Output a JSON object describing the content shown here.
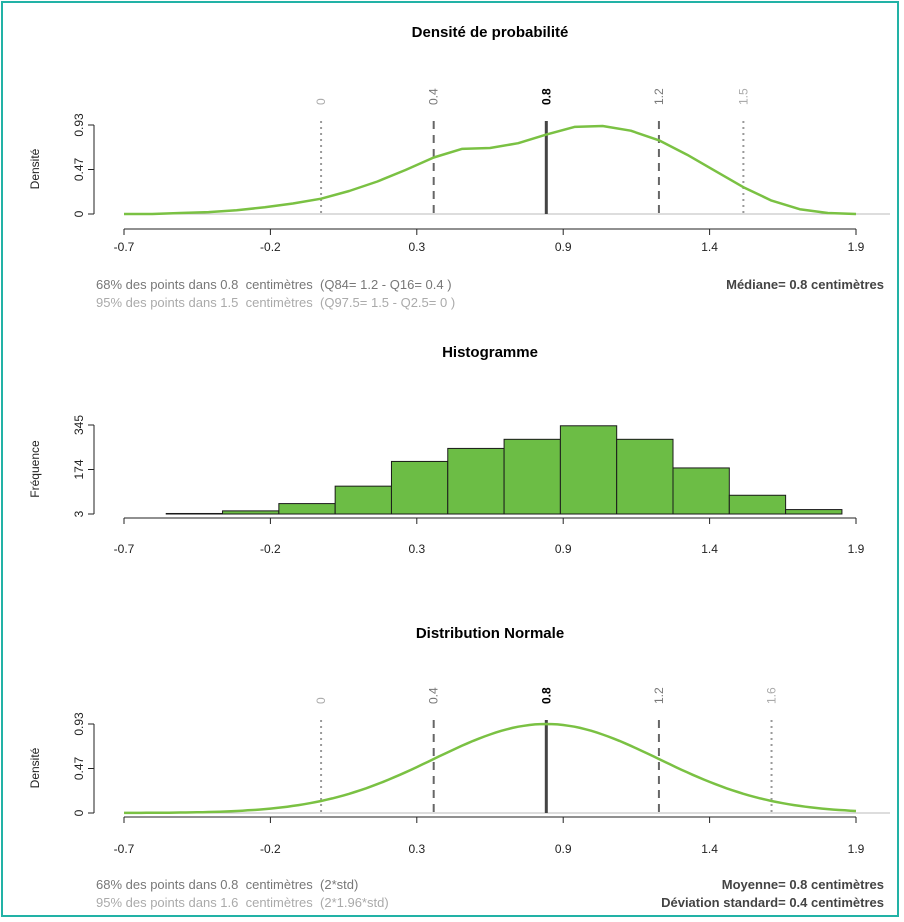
{
  "colors": {
    "curve": "#7ac143",
    "bar_fill": "#6cbd45",
    "bar_stroke": "#1a1a1a",
    "median_line": "#444444",
    "q68_line": "#666666",
    "q95_line": "#9a9a9a",
    "frame": "#22b2a6"
  },
  "panels": {
    "density": {
      "title": "Densité de probabilité",
      "ylabel": "Densité",
      "vline_labels": [
        "0",
        "0.4",
        "0.8",
        "1.2",
        "1.5"
      ],
      "footer": {
        "line1": "68% des points dans 0.8  centimètres  (Q84= 1.2 - Q16= 0.4 )",
        "line2": "95% des points dans 1.5  centimètres  (Q97.5= 1.5 - Q2.5= 0 )",
        "stat1": "Médiane= 0.8 centimètres"
      }
    },
    "histogram": {
      "title": "Histogramme",
      "ylabel": "Fréquence"
    },
    "normal": {
      "title": "Distribution Normale",
      "ylabel": "Densité",
      "vline_labels": [
        "0",
        "0.4",
        "0.8",
        "1.2",
        "1.6"
      ],
      "footer": {
        "line1": "68% des points dans 0.8  centimètres  (2*std)",
        "line2": "95% des points dans 1.6  centimètres  (2*1.96*std)",
        "stat1": "Moyenne= 0.8 centimètres",
        "stat2": "Déviation standard= 0.4 centimètres"
      }
    }
  },
  "chart_data": [
    {
      "type": "line",
      "title": "Densité de probabilité",
      "ylabel": "Densité",
      "xlim": [
        -0.7,
        1.9
      ],
      "ylim": [
        0,
        0.93
      ],
      "xticks": [
        "-0.7",
        "-0.2",
        "0.3",
        "0.9",
        "1.4",
        "1.9"
      ],
      "yticks": [
        "0",
        "0.47",
        "0.93"
      ],
      "x": [
        -0.7,
        -0.6,
        -0.5,
        -0.4,
        -0.3,
        -0.2,
        -0.1,
        0.0,
        0.1,
        0.2,
        0.3,
        0.4,
        0.5,
        0.6,
        0.7,
        0.8,
        0.9,
        1.0,
        1.1,
        1.2,
        1.3,
        1.4,
        1.5,
        1.6,
        1.7,
        1.8,
        1.9
      ],
      "y": [
        0.0,
        0.0,
        0.01,
        0.02,
        0.04,
        0.07,
        0.11,
        0.16,
        0.24,
        0.34,
        0.46,
        0.59,
        0.68,
        0.69,
        0.74,
        0.83,
        0.91,
        0.92,
        0.87,
        0.77,
        0.62,
        0.45,
        0.28,
        0.14,
        0.05,
        0.01,
        0.0
      ],
      "vlines": [
        {
          "x": 0,
          "label": "0",
          "style": "dotted"
        },
        {
          "x": 0.4,
          "label": "0.4",
          "style": "dashed"
        },
        {
          "x": 0.8,
          "label": "0.8",
          "style": "solid"
        },
        {
          "x": 1.2,
          "label": "1.2",
          "style": "dashed"
        },
        {
          "x": 1.5,
          "label": "1.5",
          "style": "dotted"
        }
      ]
    },
    {
      "type": "bar",
      "title": "Histogramme",
      "ylabel": "Fréquence",
      "xlim": [
        -0.7,
        1.9
      ],
      "ylim": [
        3,
        345
      ],
      "xticks": [
        "-0.7",
        "-0.2",
        "0.3",
        "0.9",
        "1.4",
        "1.9"
      ],
      "yticks": [
        "3",
        "174",
        "345"
      ],
      "bins": [
        {
          "start": -0.55,
          "end": -0.35,
          "count": 5
        },
        {
          "start": -0.35,
          "end": -0.15,
          "count": 15
        },
        {
          "start": -0.15,
          "end": 0.05,
          "count": 43
        },
        {
          "start": 0.05,
          "end": 0.25,
          "count": 110
        },
        {
          "start": 0.25,
          "end": 0.45,
          "count": 205
        },
        {
          "start": 0.45,
          "end": 0.65,
          "count": 255
        },
        {
          "start": 0.65,
          "end": 0.85,
          "count": 290
        },
        {
          "start": 0.85,
          "end": 1.05,
          "count": 342
        },
        {
          "start": 1.05,
          "end": 1.25,
          "count": 290
        },
        {
          "start": 1.25,
          "end": 1.45,
          "count": 180
        },
        {
          "start": 1.45,
          "end": 1.65,
          "count": 75
        },
        {
          "start": 1.65,
          "end": 1.85,
          "count": 20
        }
      ]
    },
    {
      "type": "line",
      "title": "Distribution Normale",
      "ylabel": "Densité",
      "xlim": [
        -0.7,
        1.9
      ],
      "ylim": [
        0,
        0.93
      ],
      "xticks": [
        "-0.7",
        "-0.2",
        "0.3",
        "0.9",
        "1.4",
        "1.9"
      ],
      "yticks": [
        "0",
        "0.47",
        "0.93"
      ],
      "distribution": {
        "mean": 0.8,
        "sd": 0.4
      },
      "vlines": [
        {
          "x": 0,
          "label": "0",
          "style": "dotted"
        },
        {
          "x": 0.4,
          "label": "0.4",
          "style": "dashed"
        },
        {
          "x": 0.8,
          "label": "0.8",
          "style": "solid"
        },
        {
          "x": 1.2,
          "label": "1.2",
          "style": "dashed"
        },
        {
          "x": 1.6,
          "label": "1.6",
          "style": "dotted"
        }
      ]
    }
  ]
}
